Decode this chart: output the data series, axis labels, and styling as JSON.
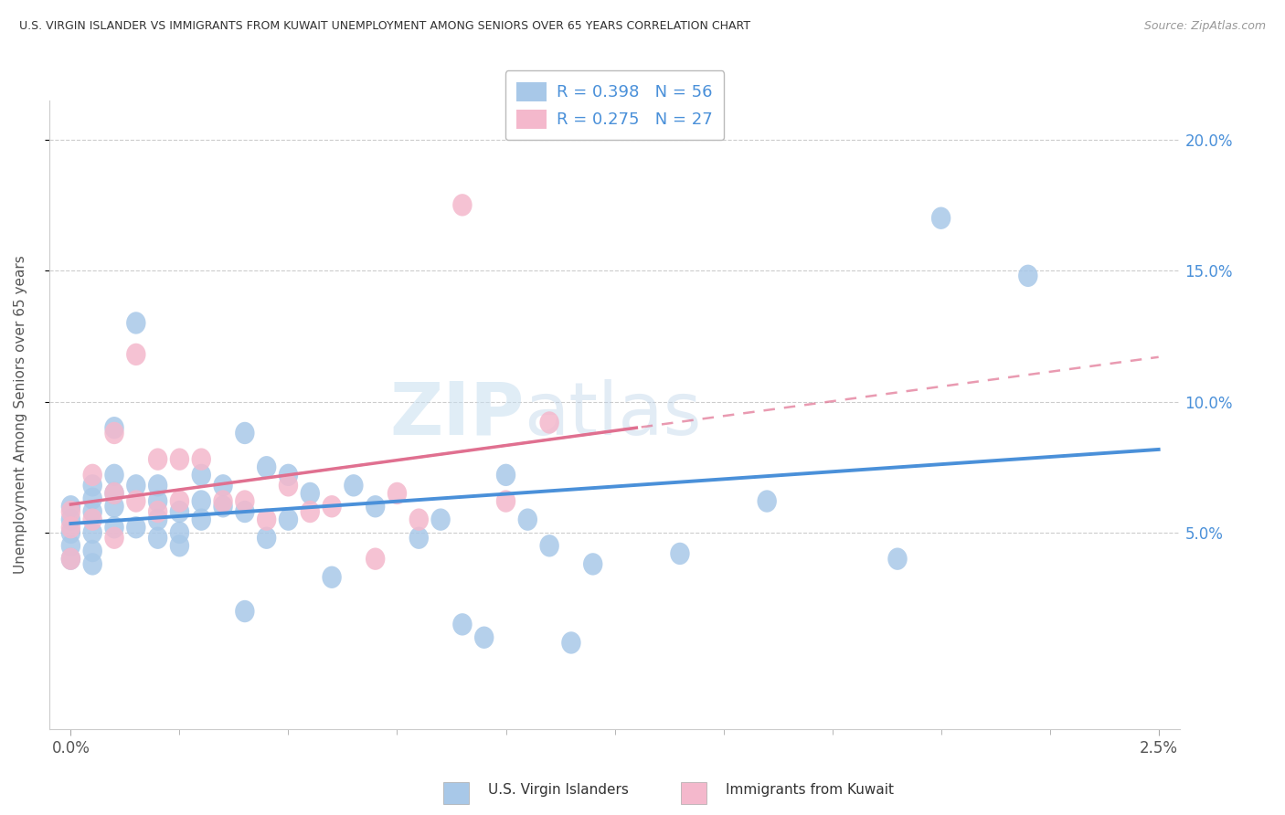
{
  "title": "U.S. VIRGIN ISLANDER VS IMMIGRANTS FROM KUWAIT UNEMPLOYMENT AMONG SENIORS OVER 65 YEARS CORRELATION CHART",
  "source": "Source: ZipAtlas.com",
  "ylabel": "Unemployment Among Seniors over 65 years",
  "ytick_labels": [
    "5.0%",
    "10.0%",
    "15.0%",
    "20.0%"
  ],
  "ytick_values": [
    0.05,
    0.1,
    0.15,
    0.2
  ],
  "xlim": [
    -0.0005,
    0.0255
  ],
  "ylim": [
    -0.025,
    0.215
  ],
  "legend_r1": "R = 0.398",
  "legend_n1": "N = 56",
  "legend_r2": "R = 0.275",
  "legend_n2": "N = 27",
  "color_blue": "#a8c8e8",
  "color_pink": "#f4b8cc",
  "color_blue_line": "#4a90d9",
  "color_pink_line": "#e07090",
  "watermark_zip": "ZIP",
  "watermark_atlas": "atlas",
  "blue_x": [
    0.0,
    0.0,
    0.0,
    0.0,
    0.0,
    0.0005,
    0.0005,
    0.0005,
    0.0005,
    0.0005,
    0.0005,
    0.001,
    0.001,
    0.001,
    0.001,
    0.001,
    0.0015,
    0.0015,
    0.0015,
    0.002,
    0.002,
    0.002,
    0.002,
    0.0025,
    0.0025,
    0.0025,
    0.003,
    0.003,
    0.003,
    0.0035,
    0.0035,
    0.004,
    0.004,
    0.004,
    0.0045,
    0.0045,
    0.005,
    0.005,
    0.0055,
    0.006,
    0.0065,
    0.007,
    0.008,
    0.0085,
    0.009,
    0.0095,
    0.01,
    0.0105,
    0.011,
    0.0115,
    0.012,
    0.014,
    0.016,
    0.019,
    0.02,
    0.022
  ],
  "blue_y": [
    0.06,
    0.055,
    0.05,
    0.045,
    0.04,
    0.068,
    0.063,
    0.058,
    0.05,
    0.043,
    0.038,
    0.09,
    0.072,
    0.065,
    0.06,
    0.052,
    0.13,
    0.068,
    0.052,
    0.068,
    0.062,
    0.055,
    0.048,
    0.058,
    0.05,
    0.045,
    0.072,
    0.062,
    0.055,
    0.068,
    0.06,
    0.088,
    0.058,
    0.02,
    0.075,
    0.048,
    0.072,
    0.055,
    0.065,
    0.033,
    0.068,
    0.06,
    0.048,
    0.055,
    0.015,
    0.01,
    0.072,
    0.055,
    0.045,
    0.008,
    0.038,
    0.042,
    0.062,
    0.04,
    0.17,
    0.148
  ],
  "pink_x": [
    0.0,
    0.0,
    0.0,
    0.0005,
    0.0005,
    0.001,
    0.001,
    0.001,
    0.0015,
    0.0015,
    0.002,
    0.002,
    0.0025,
    0.0025,
    0.003,
    0.0035,
    0.004,
    0.0045,
    0.005,
    0.0055,
    0.006,
    0.007,
    0.0075,
    0.008,
    0.009,
    0.01,
    0.011
  ],
  "pink_y": [
    0.058,
    0.052,
    0.04,
    0.072,
    0.055,
    0.088,
    0.065,
    0.048,
    0.118,
    0.062,
    0.078,
    0.058,
    0.078,
    0.062,
    0.078,
    0.062,
    0.062,
    0.055,
    0.068,
    0.058,
    0.06,
    0.04,
    0.065,
    0.055,
    0.175,
    0.062,
    0.092
  ]
}
